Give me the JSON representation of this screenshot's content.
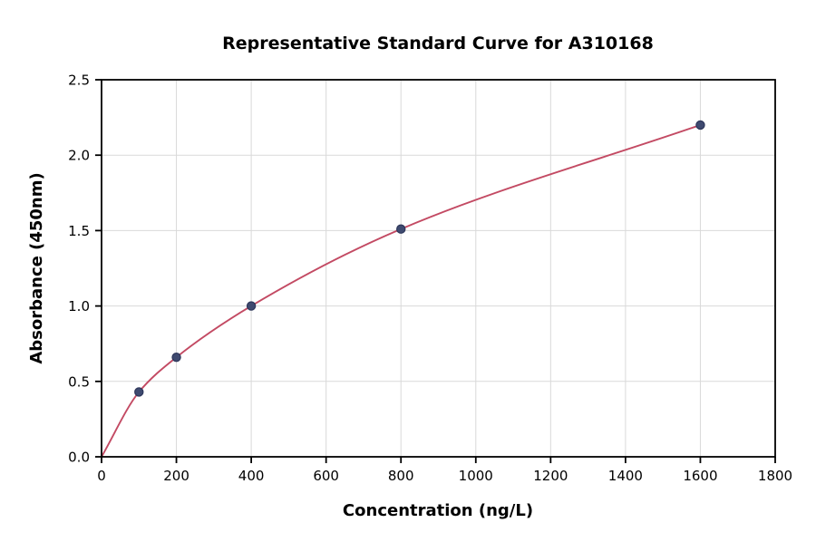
{
  "chart_data": {
    "type": "scatter",
    "title": "Representative Standard Curve for A310168",
    "xlabel": "Concentration (ng/L)",
    "ylabel": "Absorbance (450nm)",
    "xlim": [
      0,
      1800
    ],
    "ylim": [
      0,
      2.5
    ],
    "x_ticks": [
      0,
      200,
      400,
      600,
      800,
      1000,
      1200,
      1400,
      1600,
      1800
    ],
    "x_tick_labels": [
      "0",
      "200",
      "400",
      "600",
      "800",
      "1000",
      "1200",
      "1400",
      "1600",
      "1800"
    ],
    "y_ticks": [
      0,
      0.5,
      1.0,
      1.5,
      2.0,
      2.5
    ],
    "y_tick_labels": [
      "0.0",
      "0.5",
      "1.0",
      "1.5",
      "2.0",
      "2.5"
    ],
    "grid": true,
    "legend": "none",
    "points": {
      "x": [
        100,
        200,
        400,
        800,
        1600
      ],
      "y": [
        0.43,
        0.66,
        1.0,
        1.51,
        2.2
      ]
    },
    "curve": {
      "description": "smooth fitted curve through points starting at origin",
      "anchor": [
        0,
        0
      ]
    },
    "colors": {
      "curve": "#c34a63",
      "point_fill": "#3f4a70",
      "point_edge": "#2d365a",
      "grid": "#d9d9d9",
      "axis": "#000000",
      "background": "#ffffff"
    }
  }
}
